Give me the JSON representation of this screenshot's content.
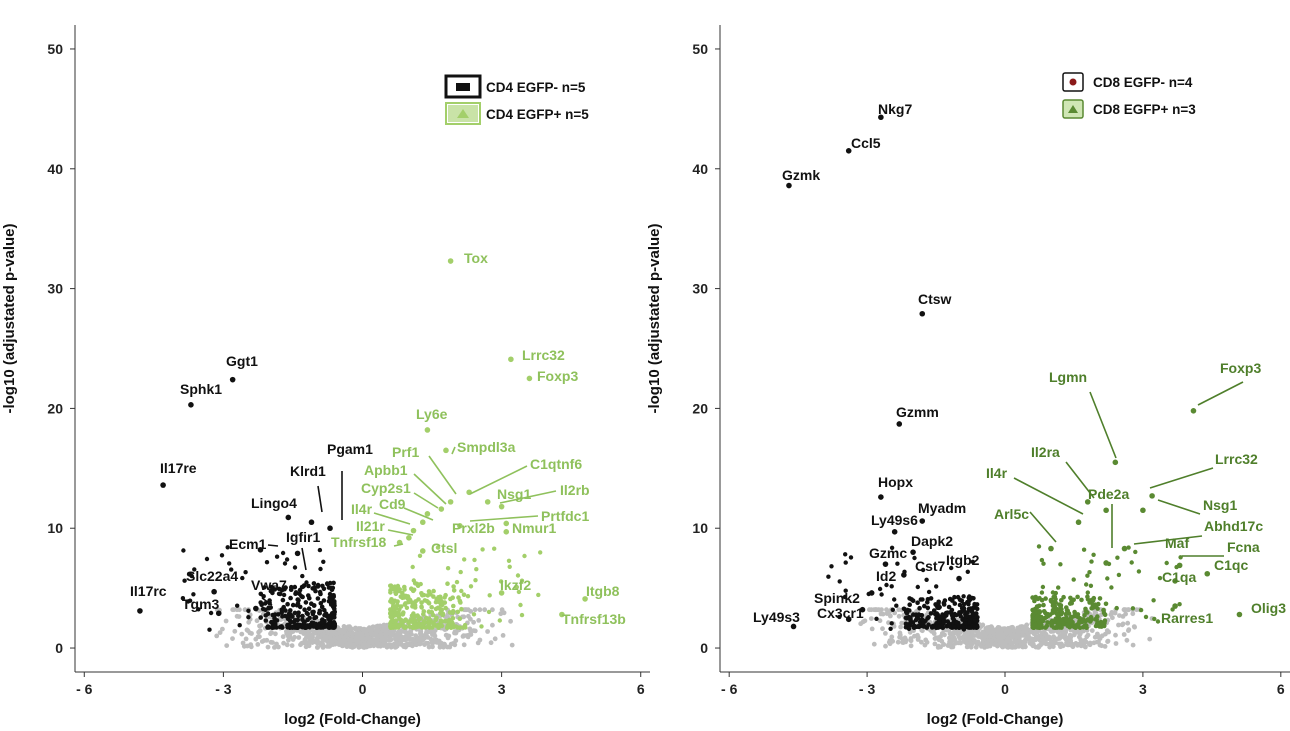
{
  "chart_data": [
    {
      "type": "scatter",
      "title": "",
      "xlabel": "log2 (Fold-Change)",
      "ylabel": "-log10 (adjustated p-value)",
      "xlim": [
        -6.2,
        6.2
      ],
      "ylim": [
        -2,
        52
      ],
      "xticks": [
        -6,
        -3,
        0,
        3,
        6
      ],
      "xtick_labels": [
        "- 6",
        "- 3",
        "0",
        "3",
        "6"
      ],
      "yticks": [
        0,
        10,
        20,
        30,
        40,
        50
      ],
      "ytick_labels": [
        "0",
        "10",
        "20",
        "30",
        "40",
        "50"
      ],
      "colors": {
        "down": "#111111",
        "up": "#a3cf6a",
        "ns": "#bdbdbd",
        "label_up": "#8fc15c"
      },
      "legend": {
        "placement": "top-right",
        "entries": [
          {
            "name": "CD4 EGFP-",
            "n": "n=5",
            "marker": "square"
          },
          {
            "name": "CD4 EGFP+",
            "n": "n=5",
            "marker": "triangle"
          }
        ]
      },
      "series": [
        {
          "name": "CD4 EGFP-",
          "direction": "down",
          "points": [
            {
              "label": "Ggt1",
              "x": -2.8,
              "y": 22.4
            },
            {
              "label": "Sphk1",
              "x": -3.7,
              "y": 20.3
            },
            {
              "label": "Il17re",
              "x": -4.3,
              "y": 13.6
            },
            {
              "label": "Pgam1",
              "x": -0.7,
              "y": 10.0
            },
            {
              "label": "Klrd1",
              "x": -1.1,
              "y": 10.5
            },
            {
              "label": "Lingo4",
              "x": -1.6,
              "y": 10.9
            },
            {
              "label": "Ecm1",
              "x": -2.2,
              "y": 8.2
            },
            {
              "label": "Igfir1",
              "x": -1.4,
              "y": 7.9
            },
            {
              "label": "Slc22a4",
              "x": -3.2,
              "y": 4.7
            },
            {
              "label": "Vwa7",
              "x": -2.3,
              "y": 3.3
            },
            {
              "label": "Il17rc",
              "x": -4.8,
              "y": 3.1
            },
            {
              "label": "Tgm3",
              "x": -3.1,
              "y": 2.9
            }
          ]
        },
        {
          "name": "CD4 EGFP+",
          "direction": "up",
          "points": [
            {
              "label": "Tox",
              "x": 1.9,
              "y": 32.3
            },
            {
              "label": "Lrrc32",
              "x": 3.2,
              "y": 24.1
            },
            {
              "label": "Foxp3",
              "x": 3.6,
              "y": 22.5
            },
            {
              "label": "Ly6e",
              "x": 1.4,
              "y": 18.2
            },
            {
              "label": "Smpdl3a",
              "x": 1.8,
              "y": 16.5
            },
            {
              "label": "Prf1",
              "x": 1.9,
              "y": 12.2
            },
            {
              "label": "Apbb1",
              "x": 1.7,
              "y": 11.6
            },
            {
              "label": "Cyp2s1",
              "x": 1.4,
              "y": 11.2
            },
            {
              "label": "Cd9",
              "x": 1.3,
              "y": 10.5
            },
            {
              "label": "Il4r",
              "x": 1.1,
              "y": 9.8
            },
            {
              "label": "Il21r",
              "x": 1.0,
              "y": 9.2
            },
            {
              "label": "Tnfrsf18",
              "x": 0.8,
              "y": 8.8
            },
            {
              "label": "C1qtnf6",
              "x": 2.3,
              "y": 13.0
            },
            {
              "label": "Nsg1",
              "x": 2.7,
              "y": 12.2
            },
            {
              "label": "Il2rb",
              "x": 3.0,
              "y": 11.8
            },
            {
              "label": "Prtfdc1",
              "x": 3.1,
              "y": 10.4
            },
            {
              "label": "Prxl2b",
              "x": 2.1,
              "y": 10.2
            },
            {
              "label": "Nmur1",
              "x": 3.1,
              "y": 9.7
            },
            {
              "label": "Ctsl",
              "x": 1.3,
              "y": 8.1
            },
            {
              "label": "Ikzf2",
              "x": 3.0,
              "y": 4.6
            },
            {
              "label": "Itgb8",
              "x": 4.8,
              "y": 4.1
            },
            {
              "label": "Tnfrsf13b",
              "x": 4.3,
              "y": 2.8
            }
          ]
        }
      ]
    },
    {
      "type": "scatter",
      "title": "",
      "xlabel": "log2 (Fold-Change)",
      "ylabel": "-log10 (adjustated p-value)",
      "xlim": [
        -6.2,
        6.2
      ],
      "ylim": [
        -2,
        52
      ],
      "xticks": [
        -6,
        -3,
        0,
        3,
        6
      ],
      "xtick_labels": [
        "- 6",
        "- 3",
        "0",
        "3",
        "6"
      ],
      "yticks": [
        0,
        10,
        20,
        30,
        40,
        50
      ],
      "ytick_labels": [
        "0",
        "10",
        "20",
        "30",
        "40",
        "50"
      ],
      "colors": {
        "down": "#111111",
        "up": "#5a8a32",
        "ns": "#bdbdbd",
        "label_up": "#4f7f2b"
      },
      "legend": {
        "placement": "top-right",
        "entries": [
          {
            "name": "CD8 EGFP-",
            "n": "n=4",
            "marker": "circle"
          },
          {
            "name": "CD8 EGFP+",
            "n": "n=3",
            "marker": "triangle"
          }
        ]
      },
      "series": [
        {
          "name": "CD8 EGFP-",
          "direction": "down",
          "points": [
            {
              "label": "Nkg7",
              "x": -2.7,
              "y": 44.3
            },
            {
              "label": "Ccl5",
              "x": -3.4,
              "y": 41.5
            },
            {
              "label": "Gzmk",
              "x": -4.7,
              "y": 38.6
            },
            {
              "label": "Ctsw",
              "x": -1.8,
              "y": 27.9
            },
            {
              "label": "Gzmm",
              "x": -2.3,
              "y": 18.7
            },
            {
              "label": "Hopx",
              "x": -2.7,
              "y": 12.6
            },
            {
              "label": "Ly49s6",
              "x": -2.4,
              "y": 9.7
            },
            {
              "label": "Myadm",
              "x": -1.8,
              "y": 10.6
            },
            {
              "label": "Dapk2",
              "x": -2.0,
              "y": 8.0
            },
            {
              "label": "Gzmc",
              "x": -2.6,
              "y": 7.0
            },
            {
              "label": "Cst7",
              "x": -2.2,
              "y": 6.1
            },
            {
              "label": "Itgb2",
              "x": -1.0,
              "y": 5.8
            },
            {
              "label": "Id2",
              "x": -2.9,
              "y": 4.6
            },
            {
              "label": "Spink2",
              "x": -3.1,
              "y": 3.2
            },
            {
              "label": "Cx3cr1",
              "x": -3.4,
              "y": 2.4
            },
            {
              "label": "Ly49s3",
              "x": -4.6,
              "y": 1.8
            }
          ]
        },
        {
          "name": "CD8 EGFP+",
          "direction": "up",
          "points": [
            {
              "label": "Foxp3",
              "x": 4.1,
              "y": 19.8
            },
            {
              "label": "Lgmn",
              "x": 2.4,
              "y": 15.5
            },
            {
              "label": "Lrrc32",
              "x": 3.2,
              "y": 12.7
            },
            {
              "label": "Il2ra",
              "x": 1.8,
              "y": 12.2
            },
            {
              "label": "Pde2a",
              "x": 2.2,
              "y": 11.5
            },
            {
              "label": "Nsg1",
              "x": 3.0,
              "y": 11.5
            },
            {
              "label": "Il4r",
              "x": 1.6,
              "y": 10.5
            },
            {
              "label": "Arl5c",
              "x": 1.0,
              "y": 8.3
            },
            {
              "label": "Abhd17c",
              "x": 2.6,
              "y": 8.3
            },
            {
              "label": "Maf",
              "x": 2.2,
              "y": 7.1
            },
            {
              "label": "Fcna",
              "x": 3.8,
              "y": 6.9
            },
            {
              "label": "C1qc",
              "x": 4.4,
              "y": 6.2
            },
            {
              "label": "C1qa",
              "x": 3.7,
              "y": 5.6
            },
            {
              "label": "Rarres1",
              "x": 3.7,
              "y": 3.5
            },
            {
              "label": "Olig3",
              "x": 5.1,
              "y": 2.8
            }
          ]
        }
      ]
    }
  ]
}
